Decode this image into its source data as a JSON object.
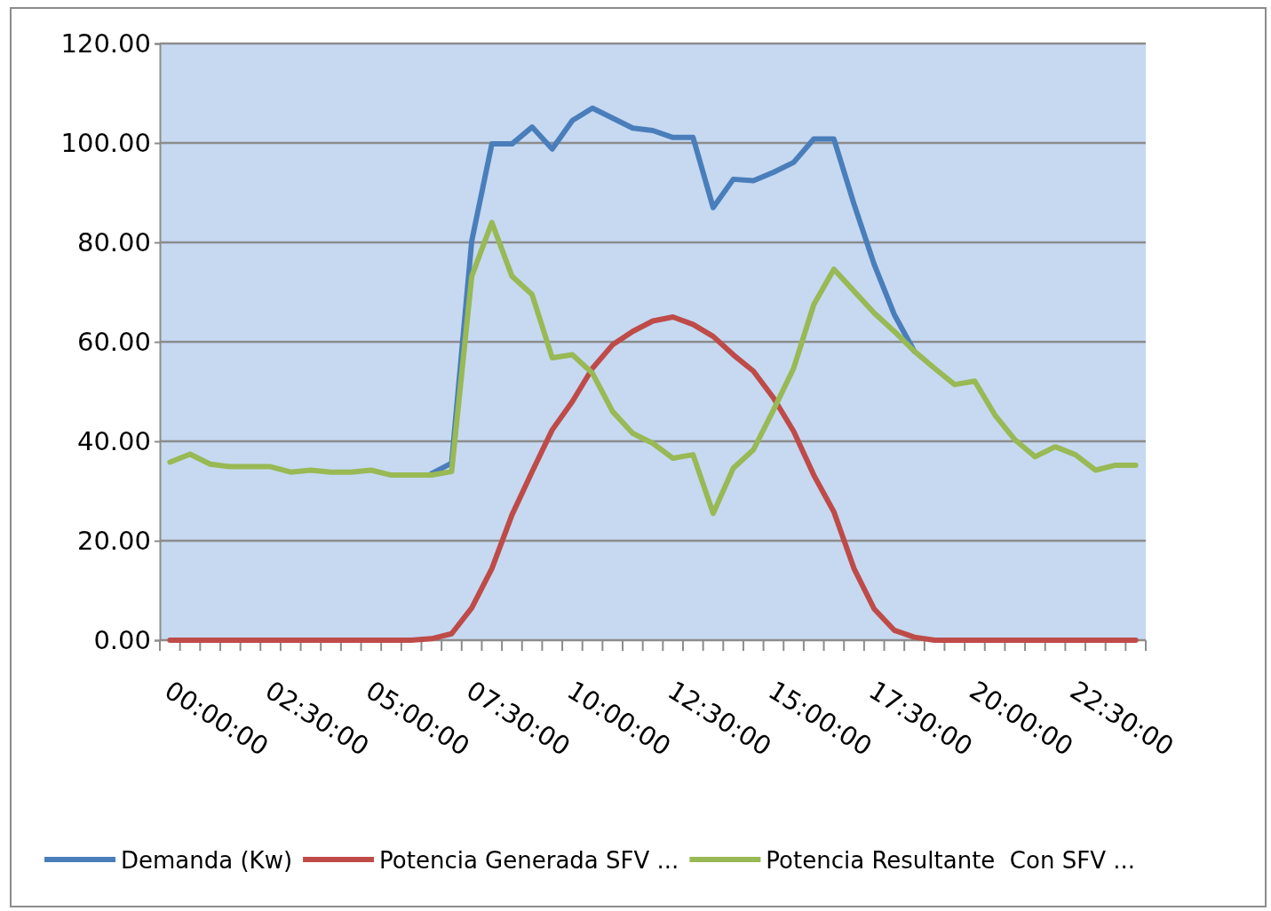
{
  "chart_data": {
    "type": "line",
    "categories": [
      "00:00:00",
      null,
      null,
      null,
      null,
      "02:30:00",
      null,
      null,
      null,
      null,
      "05:00:00",
      null,
      null,
      null,
      null,
      "07:30:00",
      null,
      null,
      null,
      null,
      "10:00:00",
      null,
      null,
      null,
      null,
      "12:30:00",
      null,
      null,
      null,
      null,
      "15:00:00",
      null,
      null,
      null,
      null,
      "17:30:00",
      null,
      null,
      null,
      null,
      "20:00:00",
      null,
      null,
      null,
      null,
      "22:30:00",
      null,
      null,
      null
    ],
    "series": [
      {
        "name": "Demanda (Kw)",
        "color": "#4a7ebb",
        "values": [
          null,
          null,
          null,
          null,
          null,
          null,
          null,
          null,
          null,
          null,
          null,
          null,
          null,
          33.5,
          35.6,
          80.3,
          99.8,
          99.8,
          103.2,
          98.8,
          104.5,
          107,
          105,
          103,
          102.5,
          101.1,
          101.1,
          87,
          92.7,
          92.4,
          94.1,
          96.1,
          100.8,
          100.8,
          87.7,
          75.6,
          65.5,
          58.1,
          null,
          null,
          null,
          null,
          null,
          null,
          null,
          null,
          null,
          null,
          null
        ]
      },
      {
        "name": "Potencia Generada SFV ...",
        "color": "#be4b48",
        "values": [
          0,
          0,
          0,
          0,
          0,
          0,
          0,
          0,
          0,
          0,
          0,
          0,
          0,
          0.3,
          1.3,
          6.5,
          14.4,
          25.2,
          33.9,
          42.3,
          48,
          54.7,
          59.4,
          62.1,
          64.2,
          65,
          63.5,
          61.1,
          57.4,
          54.1,
          48.7,
          42,
          33.2,
          25.8,
          14.4,
          6.3,
          2,
          0.6,
          0,
          0,
          0,
          0,
          0,
          0,
          0,
          0,
          0,
          0,
          0
        ]
      },
      {
        "name": "Potencia Resultante  Con SFV ...",
        "color": "#98b954",
        "values": [
          35.8,
          37.4,
          35.4,
          34.9,
          34.9,
          34.9,
          33.8,
          34.2,
          33.8,
          33.8,
          34.2,
          33.2,
          33.2,
          33.2,
          33.9,
          73.2,
          84,
          73.2,
          69.5,
          56.8,
          57.4,
          53.7,
          46,
          41.6,
          39.6,
          36.6,
          37.3,
          25.5,
          34.6,
          38.3,
          46.3,
          54.7,
          67.5,
          74.6,
          70.2,
          65.8,
          62.1,
          58.1,
          54.7,
          51.4,
          52.1,
          45.3,
          40.3,
          36.9,
          38.9,
          37.3,
          34.2,
          35.2,
          35.2
        ]
      }
    ],
    "ylim": [
      0,
      120
    ],
    "yticks": [
      {
        "value": 0,
        "label": "0.00"
      },
      {
        "value": 20,
        "label": "20.00"
      },
      {
        "value": 40,
        "label": "40.00"
      },
      {
        "value": 60,
        "label": "60.00"
      },
      {
        "value": 80,
        "label": "80.00"
      },
      {
        "value": 100,
        "label": "100.00"
      },
      {
        "value": 120,
        "label": "120.00"
      }
    ],
    "grid": "y",
    "legend": "bottom",
    "marker": "none",
    "line_style": "solid"
  }
}
